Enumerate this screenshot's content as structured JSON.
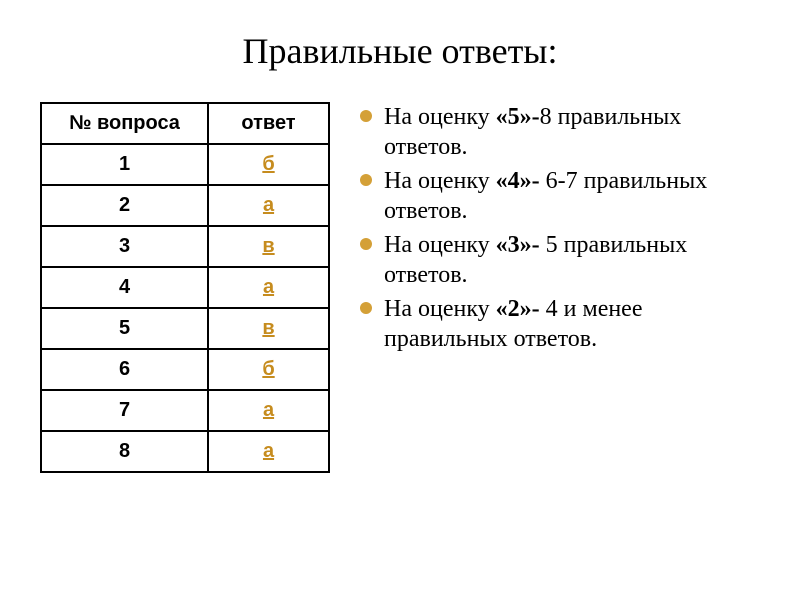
{
  "title": "Правильные ответы:",
  "table": {
    "columns": [
      "№ вопроса",
      "ответ"
    ],
    "rows": [
      {
        "num": "1",
        "answer": "б"
      },
      {
        "num": "2",
        "answer": "а"
      },
      {
        "num": "3",
        "answer": "в"
      },
      {
        "num": "4",
        "answer": "а"
      },
      {
        "num": "5",
        "answer": "в"
      },
      {
        "num": "6",
        "answer": "б"
      },
      {
        "num": "7",
        "answer": "а"
      },
      {
        "num": "8",
        "answer": "а"
      }
    ],
    "border_color": "#000000",
    "link_color": "#c68c1e"
  },
  "grading": {
    "bullet_color": "#d4a037",
    "items": [
      {
        "prefix": "На оценку ",
        "grade": "«5»-",
        "suffix": "8 правильных ответов."
      },
      {
        "prefix": "На оценку ",
        "grade": "«4»- ",
        "suffix": "6-7 правильных ответов."
      },
      {
        "prefix": "На оценку ",
        "grade": "«3»- ",
        "suffix": "5 правильных ответов."
      },
      {
        "prefix": "На оценку ",
        "grade": "«2»- ",
        "suffix": "4 и менее правильных ответов."
      }
    ]
  },
  "colors": {
    "background": "#ffffff",
    "text": "#000000"
  }
}
